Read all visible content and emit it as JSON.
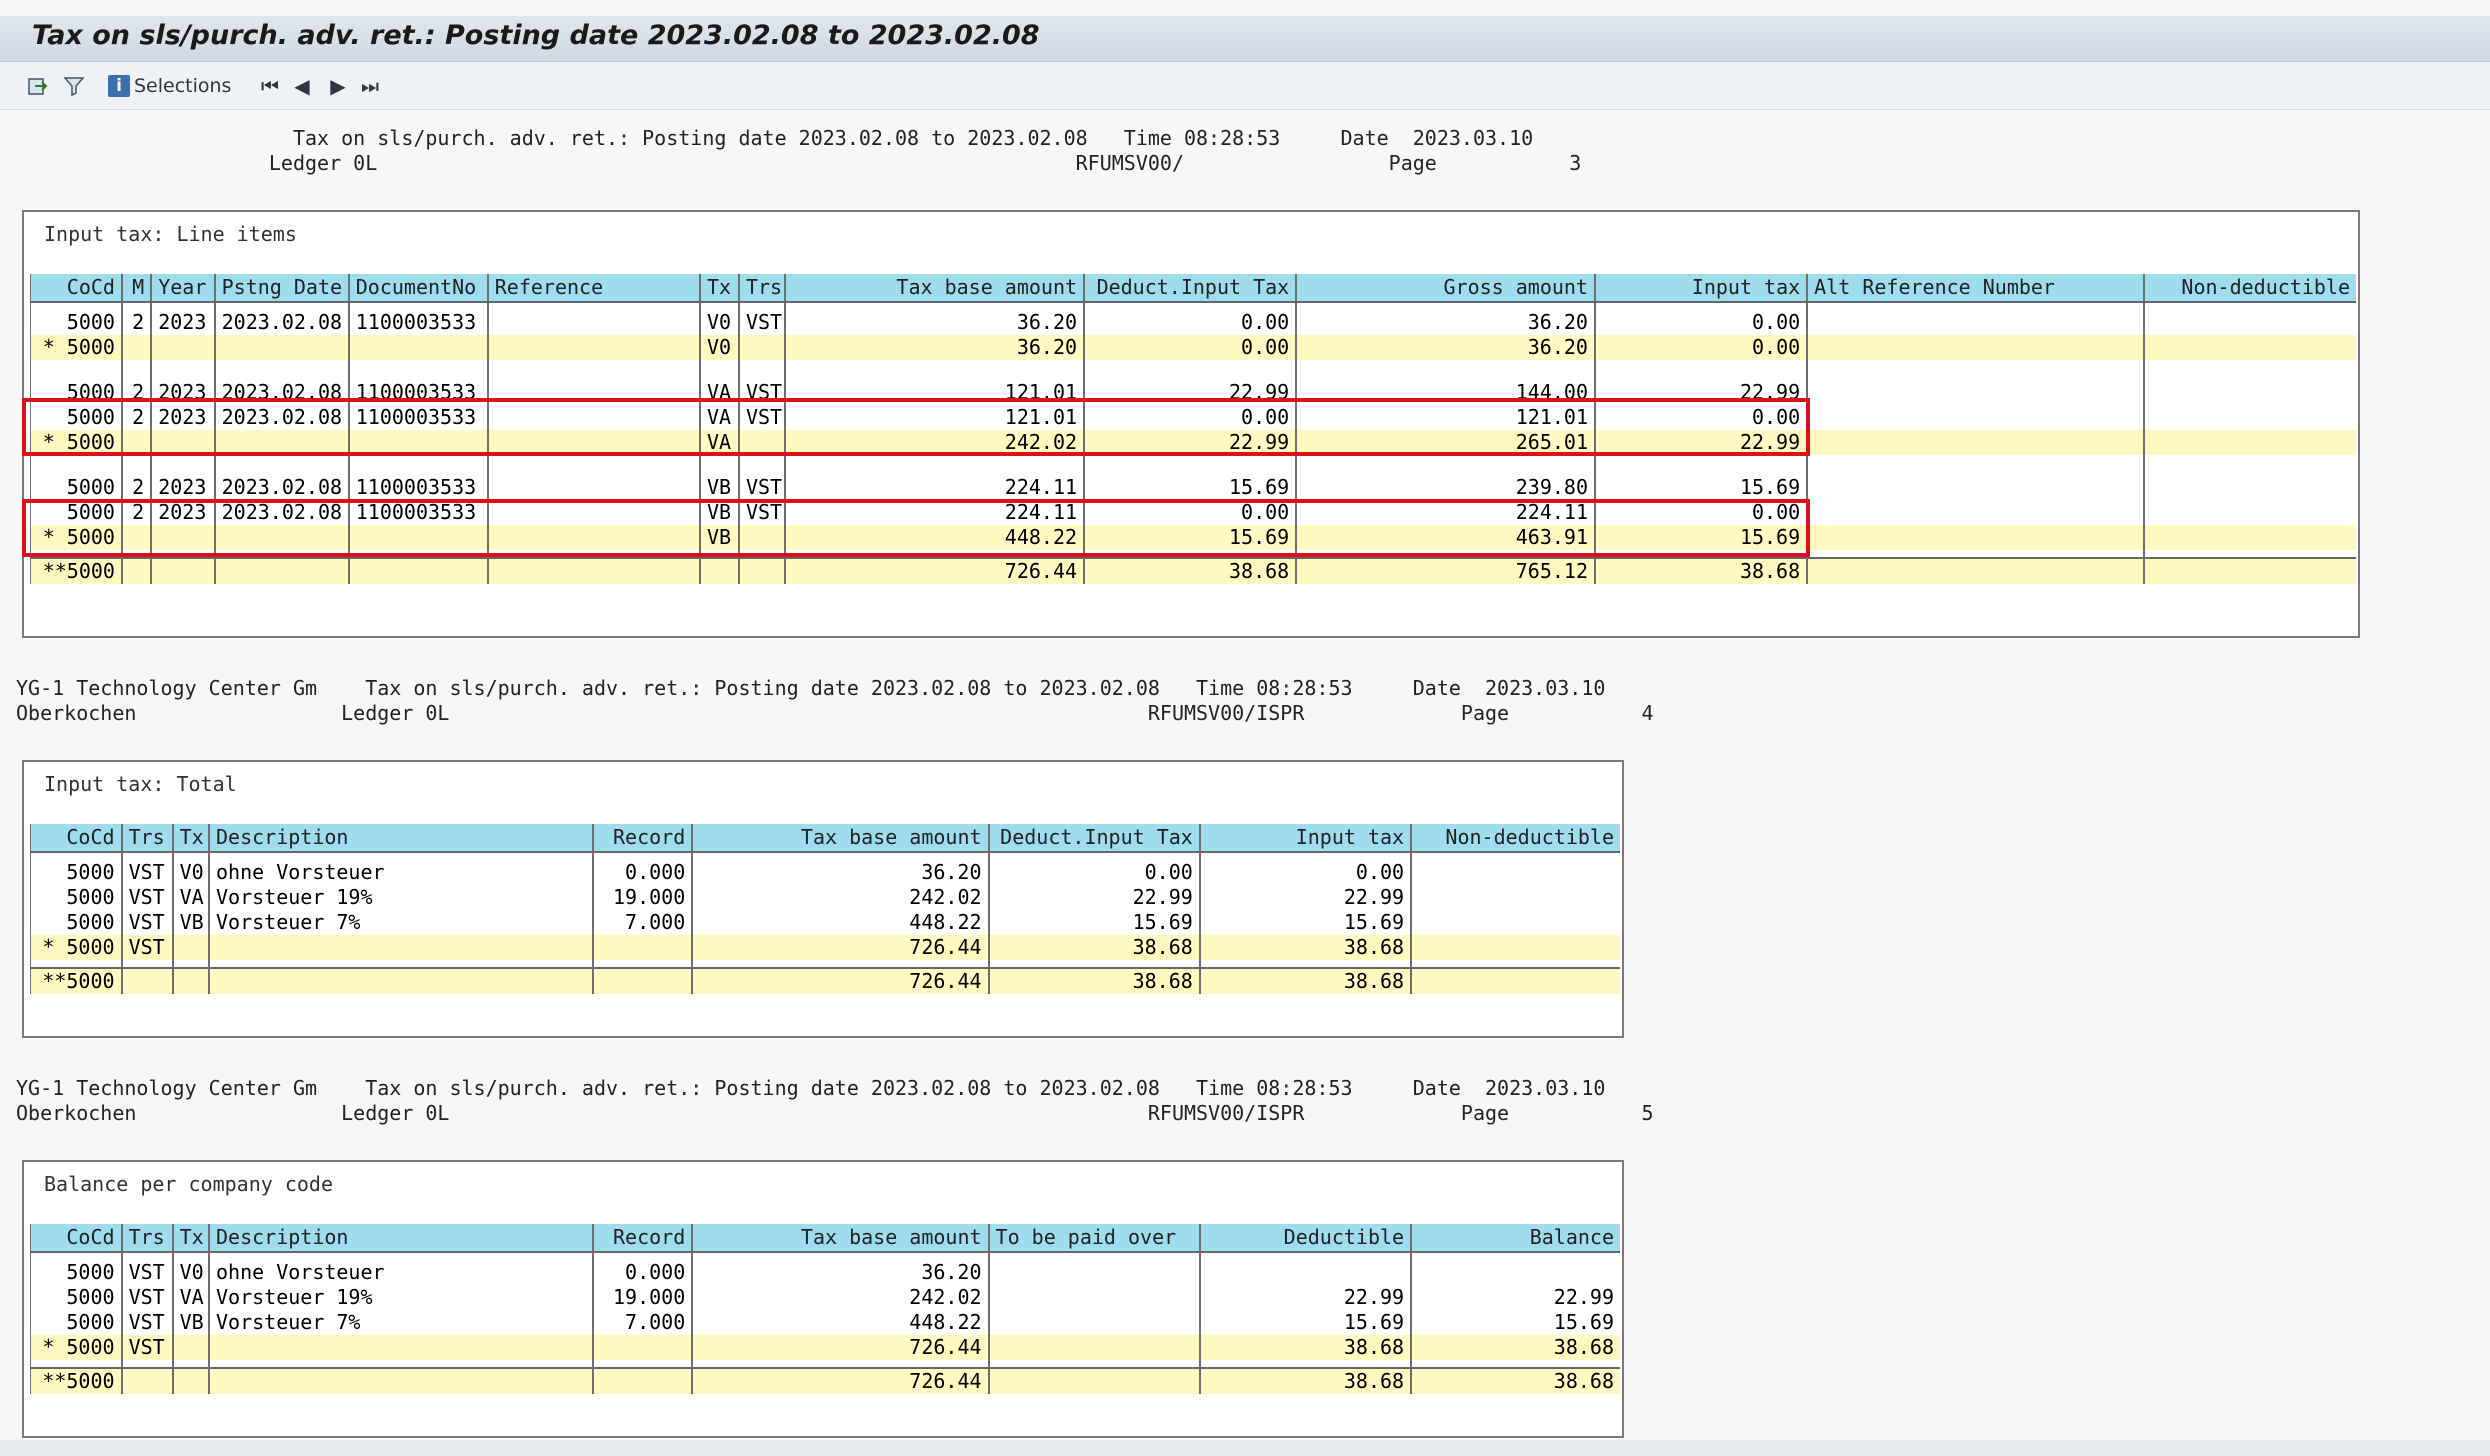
{
  "window": {
    "title": "Tax on sls/purch. adv. ret.: Posting date 2023.02.08 to 2023.02.08"
  },
  "toolbar": {
    "icons": [
      "export-icon",
      "filter-icon"
    ],
    "selections_label": "Selections",
    "nav": [
      "first-page-icon",
      "previous-page-icon",
      "next-page-icon",
      "last-page-icon"
    ],
    "nav_glyphs": [
      "⏮",
      "◀",
      "▶",
      "⏭"
    ]
  },
  "page3": {
    "header_line1": "                       Tax on sls/purch. adv. ret.: Posting date 2023.02.08 to 2023.02.08   Time 08:28:53     Date  2023.03.10",
    "header_line2": "                     Ledger 0L                                                          RFUMSV00/                 Page           3",
    "section_title": "Input tax: Line items",
    "columns": [
      "CoCd",
      "M",
      "Year",
      "Pstng Date",
      "DocumentNo",
      "Reference",
      "Tx",
      "Trs",
      "Tax base amount",
      "Deduct.Input Tax",
      "Gross amount",
      "Input tax",
      "Alt Reference Number",
      "Non-deductible"
    ],
    "groups": [
      {
        "rows": [
          [
            "5000",
            "2",
            "2023",
            "2023.02.08",
            "1100003533",
            "",
            "V0",
            "VST",
            "36.20",
            "0.00",
            "36.20",
            "0.00",
            "",
            ""
          ]
        ],
        "subtotal": [
          "* 5000",
          "",
          "",
          "",
          "",
          "",
          "V0",
          "",
          "36.20",
          "0.00",
          "36.20",
          "0.00",
          "",
          ""
        ]
      },
      {
        "rows": [
          [
            "5000",
            "2",
            "2023",
            "2023.02.08",
            "1100003533",
            "",
            "VA",
            "VST",
            "121.01",
            "22.99",
            "144.00",
            "22.99",
            "",
            ""
          ],
          [
            "5000",
            "2",
            "2023",
            "2023.02.08",
            "1100003533",
            "",
            "VA",
            "VST",
            "121.01",
            "0.00",
            "121.01",
            "0.00",
            "",
            ""
          ]
        ],
        "subtotal": [
          "* 5000",
          "",
          "",
          "",
          "",
          "",
          "VA",
          "",
          "242.02",
          "22.99",
          "265.01",
          "22.99",
          "",
          ""
        ]
      },
      {
        "rows": [
          [
            "5000",
            "2",
            "2023",
            "2023.02.08",
            "1100003533",
            "",
            "VB",
            "VST",
            "224.11",
            "15.69",
            "239.80",
            "15.69",
            "",
            ""
          ],
          [
            "5000",
            "2",
            "2023",
            "2023.02.08",
            "1100003533",
            "",
            "VB",
            "VST",
            "224.11",
            "0.00",
            "224.11",
            "0.00",
            "",
            ""
          ]
        ],
        "subtotal": [
          "* 5000",
          "",
          "",
          "",
          "",
          "",
          "VB",
          "",
          "448.22",
          "15.69",
          "463.91",
          "15.69",
          "",
          ""
        ]
      }
    ],
    "total": [
      "**5000",
      "",
      "",
      "",
      "",
      "",
      "",
      "",
      "726.44",
      "38.68",
      "765.12",
      "38.68",
      "",
      ""
    ]
  },
  "page4": {
    "header_line1": "YG-1 Technology Center Gm    Tax on sls/purch. adv. ret.: Posting date 2023.02.08 to 2023.02.08   Time 08:28:53     Date  2023.03.10",
    "header_line2": "Oberkochen                 Ledger 0L                                                          RFUMSV00/ISPR             Page           4",
    "section_title": "Input tax: Total",
    "columns": [
      "CoCd",
      "Trs",
      "Tx",
      "Description",
      "Record",
      "Tax base amount",
      "Deduct.Input Tax",
      "Input tax",
      "Non-deductible"
    ],
    "rows": [
      [
        "5000",
        "VST",
        "V0",
        "ohne Vorsteuer",
        "0.000",
        "36.20",
        "0.00",
        "0.00",
        ""
      ],
      [
        "5000",
        "VST",
        "VA",
        "Vorsteuer 19%",
        "19.000",
        "242.02",
        "22.99",
        "22.99",
        ""
      ],
      [
        "5000",
        "VST",
        "VB",
        "Vorsteuer 7%",
        "7.000",
        "448.22",
        "15.69",
        "15.69",
        ""
      ]
    ],
    "subtotal": [
      "* 5000",
      "VST",
      "",
      "",
      "",
      "726.44",
      "38.68",
      "38.68",
      ""
    ],
    "total": [
      "**5000",
      "",
      "",
      "",
      "",
      "726.44",
      "38.68",
      "38.68",
      ""
    ]
  },
  "page5": {
    "header_line1": "YG-1 Technology Center Gm    Tax on sls/purch. adv. ret.: Posting date 2023.02.08 to 2023.02.08   Time 08:28:53     Date  2023.03.10",
    "header_line2": "Oberkochen                 Ledger 0L                                                          RFUMSV00/ISPR             Page           5",
    "section_title": "Balance per company code",
    "columns": [
      "CoCd",
      "Trs",
      "Tx",
      "Description",
      "Record",
      "Tax base amount",
      "To be paid over",
      "Deductible",
      "Balance"
    ],
    "rows": [
      [
        "5000",
        "VST",
        "V0",
        "ohne Vorsteuer",
        "0.000",
        "36.20",
        "",
        "",
        ""
      ],
      [
        "5000",
        "VST",
        "VA",
        "Vorsteuer 19%",
        "19.000",
        "242.02",
        "",
        "22.99",
        "22.99"
      ],
      [
        "5000",
        "VST",
        "VB",
        "Vorsteuer 7%",
        "7.000",
        "448.22",
        "",
        "15.69",
        "15.69"
      ]
    ],
    "subtotal": [
      "* 5000",
      "VST",
      "",
      "",
      "",
      "726.44",
      "",
      "38.68",
      "38.68"
    ],
    "total": [
      "**5000",
      "",
      "",
      "",
      "",
      "726.44",
      "",
      "38.68",
      "38.68"
    ]
  }
}
